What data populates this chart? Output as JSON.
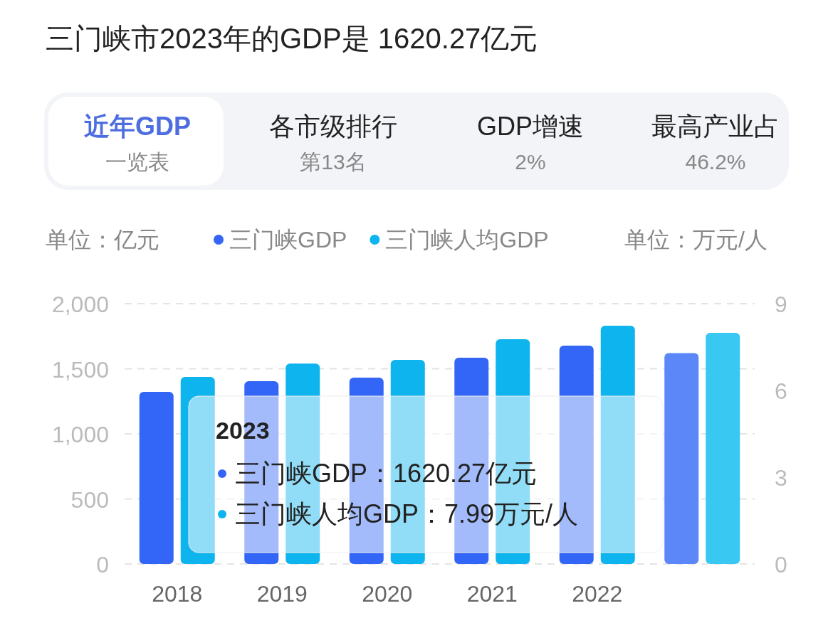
{
  "chart_data": {
    "type": "bar",
    "title": "三门峡市2023年的GDP是 1620.27亿元",
    "categories": [
      "2018",
      "2019",
      "2020",
      "2021",
      "2022",
      null
    ],
    "series": [
      {
        "name": "三门峡GDP",
        "color": "#3366f6",
        "colors": [
          "#3366f6",
          "#3366f6",
          "#3366f6",
          "#3366f6",
          "#3366f6",
          "#5b87f8"
        ],
        "values": [
          1322,
          1404,
          1432,
          1585,
          1678,
          1620.27
        ]
      },
      {
        "name": "三门峡人均GDP",
        "color": "#0db4ee",
        "colors": [
          "#0db4ee",
          "#0db4ee",
          "#0db4ee",
          "#0db4ee",
          "#0db4ee",
          "#38c8f2"
        ],
        "axis": "y2",
        "values": [
          6.47,
          6.93,
          7.06,
          7.77,
          8.24,
          7.99
        ]
      }
    ],
    "ylabel": "单位：亿元",
    "y2label": "单位：万元/人",
    "ylim": [
      0,
      2000
    ],
    "yticks": [
      0,
      {
        "value": 500,
        "label": "500"
      },
      {
        "value": 1000,
        "label": "1,000"
      },
      {
        "value": 1500,
        "label": "1,500"
      },
      {
        "value": 2000,
        "label": "2,000"
      }
    ],
    "y2lim": [
      0,
      9
    ],
    "y2ticks": [
      0,
      3,
      6,
      9
    ],
    "grid": "y",
    "legend": "top",
    "annotations": [
      "近年GDP",
      "一览表",
      "各市级排行",
      "第13名",
      "GDP增速",
      "2%",
      "最高产业占",
      "46.2%",
      "2023",
      "三门峡GDP：1620.27亿元",
      "三门峡人均GDP：7.99万元/人"
    ]
  }
}
